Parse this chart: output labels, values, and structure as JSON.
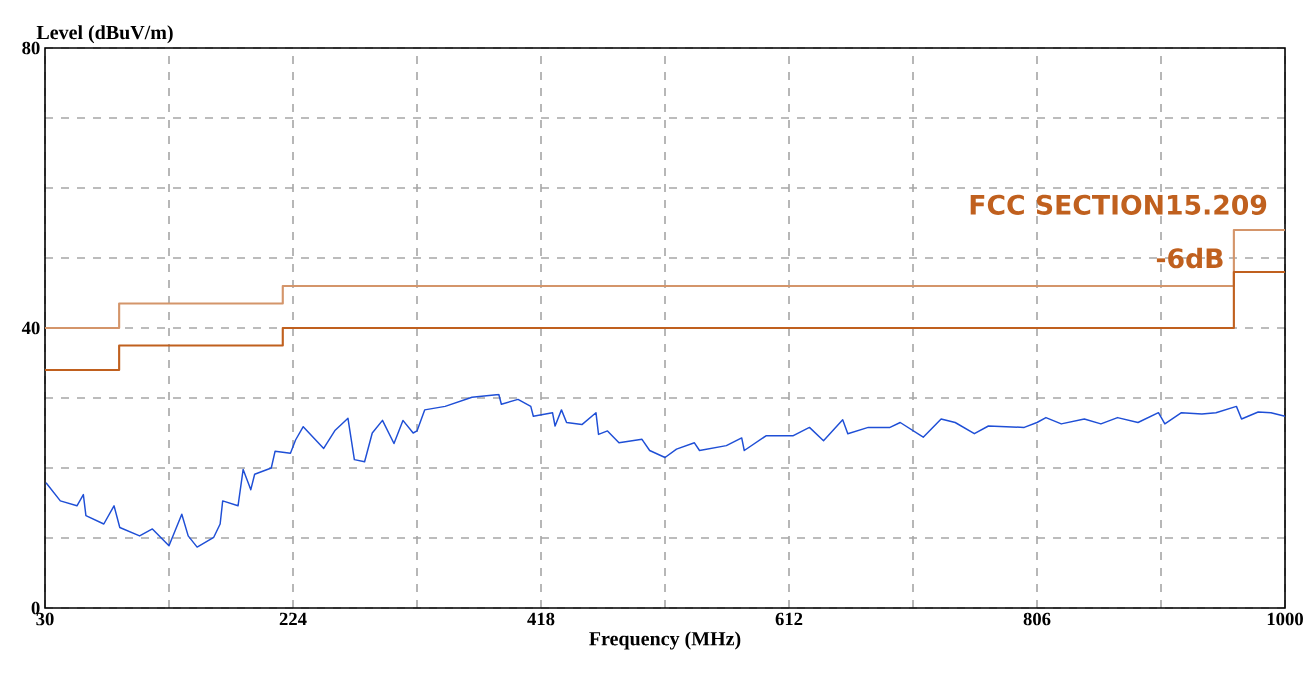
{
  "chart_data": {
    "type": "line",
    "xlabel": "Frequency (MHz)",
    "ylabel": "Level (dBuV/m)",
    "xlim": [
      30,
      1000
    ],
    "ylim": [
      0,
      80
    ],
    "xticks": [
      30,
      {
        "value": 127,
        "label": null
      },
      224,
      {
        "value": 321,
        "label": null
      },
      418,
      {
        "value": 515,
        "label": null
      },
      612,
      {
        "value": 709,
        "label": null
      },
      806,
      {
        "value": 903,
        "label": null
      },
      1000
    ],
    "yticks": [
      0,
      {
        "value": 10,
        "label": null
      },
      {
        "value": 20,
        "label": null
      },
      {
        "value": 30,
        "label": null
      },
      40,
      {
        "value": 50,
        "label": null
      },
      {
        "value": 60,
        "label": null
      },
      {
        "value": 70,
        "label": null
      },
      80
    ],
    "grid": true,
    "line_style": "solid",
    "marker": "none",
    "annotations": [
      "FCC SECTION15.209",
      "-6dB"
    ],
    "series": [
      {
        "type": "step",
        "color": "#d4956a",
        "x": [
          30,
          88,
          216,
          960,
          1000
        ],
        "values": [
          40,
          43.5,
          46,
          54,
          54
        ]
      },
      {
        "type": "step",
        "color": "#c0601e",
        "x": [
          30,
          88,
          216,
          960,
          1000
        ],
        "values": [
          34,
          37.5,
          40,
          48,
          48
        ]
      },
      {
        "color": "#1f4fd6",
        "x": [
          30.8,
          42,
          55,
          60,
          62,
          76,
          84,
          88.5,
          104,
          114,
          127,
          137,
          142,
          149,
          162,
          167,
          169,
          181,
          185,
          191,
          194,
          207,
          210,
          222,
          226,
          232,
          248,
          257,
          267,
          272,
          280,
          286,
          294,
          303,
          310,
          318,
          321,
          327,
          343,
          364,
          385,
          387,
          400,
          410,
          412,
          427,
          429,
          434,
          438,
          450,
          461,
          463,
          470,
          479,
          497,
          503,
          515,
          524,
          538,
          542,
          563,
          575,
          577,
          594,
          615,
          628,
          639,
          654,
          658,
          674,
          691,
          699,
          717,
          731,
          742,
          757,
          768,
          796,
          806,
          813,
          825,
          843,
          856,
          869,
          885,
          901,
          906,
          919,
          935,
          946,
          962,
          966,
          979,
          989,
          1000
        ],
        "values": [
          17.9,
          15.3,
          14.6,
          16.2,
          13.2,
          12.0,
          14.6,
          11.5,
          10.3,
          11.3,
          8.9,
          13.4,
          10.3,
          8.7,
          10.1,
          12.0,
          15.3,
          14.6,
          19.8,
          16.9,
          19.1,
          20.0,
          22.4,
          22.1,
          24.0,
          25.9,
          22.8,
          25.4,
          27.1,
          21.2,
          20.9,
          25.0,
          26.8,
          23.5,
          26.8,
          25.0,
          25.3,
          28.3,
          28.8,
          30.1,
          30.5,
          29.1,
          29.8,
          28.8,
          27.4,
          27.9,
          26.0,
          28.3,
          26.5,
          26.2,
          27.9,
          24.8,
          25.3,
          23.6,
          24.1,
          22.5,
          21.5,
          22.7,
          23.6,
          22.5,
          23.2,
          24.3,
          22.5,
          24.6,
          24.6,
          25.8,
          23.9,
          26.9,
          24.9,
          25.8,
          25.8,
          26.5,
          24.4,
          27.0,
          26.5,
          24.9,
          26.0,
          25.8,
          26.5,
          27.2,
          26.3,
          27.0,
          26.3,
          27.2,
          26.5,
          27.9,
          26.3,
          27.9,
          27.7,
          27.9,
          28.8,
          27.0,
          28.0,
          27.9,
          27.4
        ]
      }
    ]
  }
}
